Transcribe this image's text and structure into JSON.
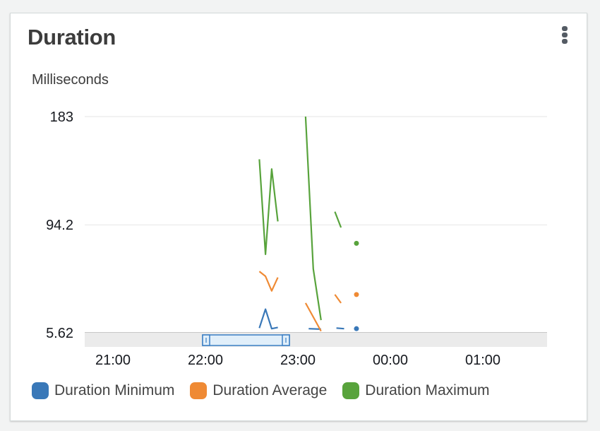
{
  "widget": {
    "title": "Duration",
    "unit_label": "Milliseconds"
  },
  "icons": {
    "menu": "vertical-ellipsis-icon"
  },
  "chart_data": {
    "type": "line",
    "title": "Duration",
    "ylabel": "Milliseconds",
    "ylim": [
      5.62,
      183
    ],
    "y_ticks": [
      "5.62",
      "94.2",
      "183"
    ],
    "x_ticks": [
      "21:00",
      "22:00",
      "23:00",
      "00:00",
      "01:00"
    ],
    "grid": true,
    "legend_position": "bottom",
    "series": [
      {
        "name": "Duration Minimum",
        "color": "#3978b8",
        "segments": [
          [
            [
              "22:35",
              9.5
            ],
            [
              "22:39",
              25
            ],
            [
              "22:43",
              9
            ],
            [
              "22:47",
              10
            ]
          ],
          [
            [
              "23:07",
              9
            ],
            [
              "23:15",
              8.6
            ]
          ],
          [
            [
              "23:25",
              9.5
            ],
            [
              "23:30",
              9
            ]
          ],
          [
            [
              "23:38",
              9
            ]
          ]
        ]
      },
      {
        "name": "Duration Average",
        "color": "#ef8a34",
        "segments": [
          [
            [
              "22:35",
              56
            ],
            [
              "22:39",
              52
            ],
            [
              "22:43",
              40
            ],
            [
              "22:47",
              51
            ]
          ],
          [
            [
              "23:05",
              30
            ],
            [
              "23:15",
              7
            ]
          ],
          [
            [
              "23:24",
              37
            ],
            [
              "23:28",
              30
            ]
          ],
          [
            [
              "23:38",
              37
            ]
          ]
        ]
      },
      {
        "name": "Duration Maximum",
        "color": "#58a33c",
        "segments": [
          [
            [
              "22:35",
              148
            ],
            [
              "22:39",
              70
            ],
            [
              "22:43",
              140
            ],
            [
              "22:47",
              97
            ]
          ],
          [
            [
              "23:05",
              183
            ],
            [
              "23:10",
              58
            ],
            [
              "23:15",
              16
            ]
          ],
          [
            [
              "23:24",
              105
            ],
            [
              "23:28",
              92
            ]
          ],
          [
            [
              "23:38",
              79
            ]
          ]
        ]
      }
    ]
  }
}
